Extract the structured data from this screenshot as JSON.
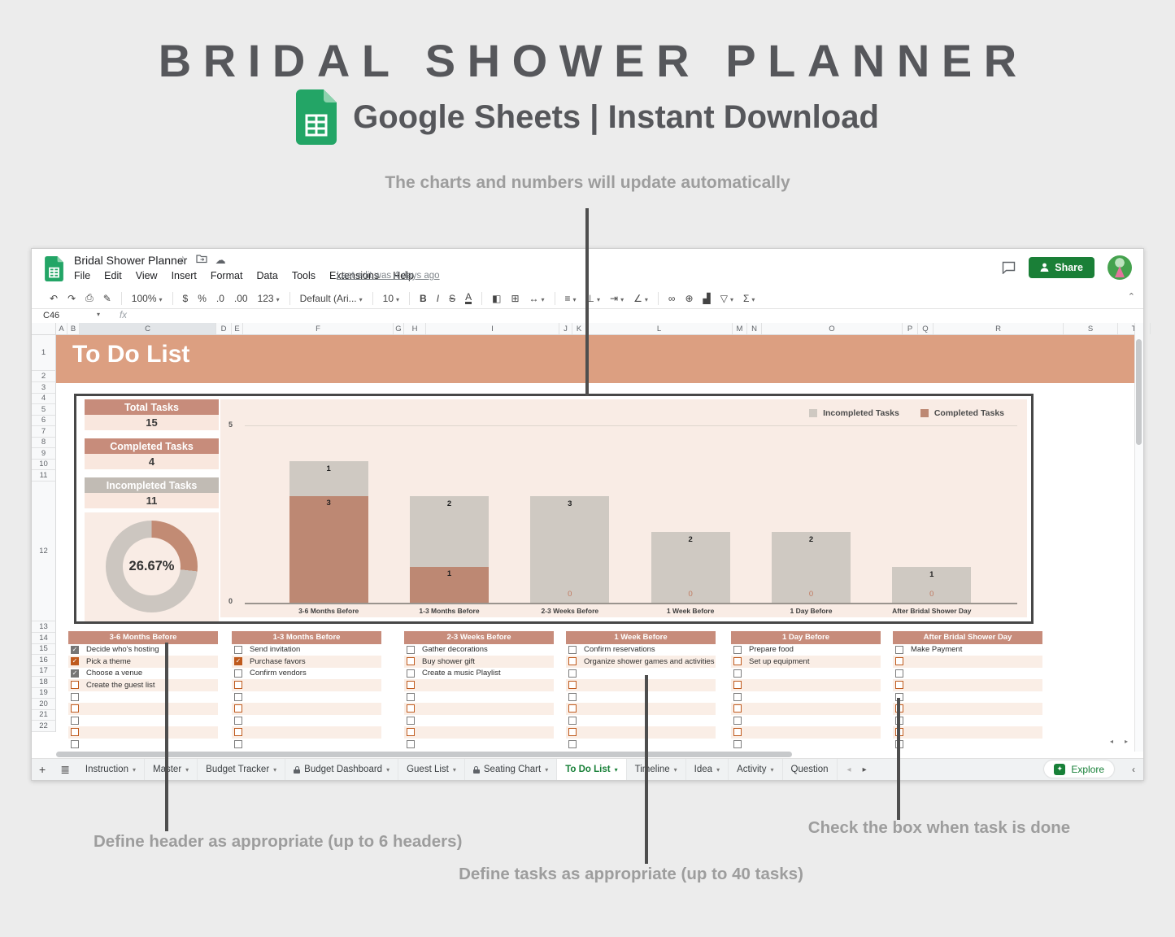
{
  "hero": {
    "title": "BRIDAL SHOWER PLANNER",
    "subtitle": "Google Sheets | Instant Download",
    "note_top": "The charts and numbers will update automatically",
    "note_headers": "Define header as appropriate (up to 6 headers)",
    "note_tasks": "Define tasks as appropriate (up to 40 tasks)",
    "note_checkbox": "Check the box when task is done"
  },
  "sheet": {
    "doc_title": "Bridal Shower Planner",
    "menu": [
      "File",
      "Edit",
      "View",
      "Insert",
      "Format",
      "Data",
      "Tools",
      "Extensions",
      "Help"
    ],
    "last_edit": "Last edit was 4 days ago",
    "share_label": "Share",
    "name_box": "C46",
    "fx_label": "fx",
    "toolbar": {
      "zoom": "100%",
      "currency": "$",
      "percent": "%",
      "dec0": ".0",
      "dec00": ".00",
      "more_formats": "123",
      "font": "Default (Ari...",
      "size": "10"
    },
    "columns": [
      "A",
      "B",
      "C",
      "D",
      "E",
      "F",
      "G",
      "H",
      "I",
      "J",
      "K",
      "L",
      "M",
      "N",
      "O",
      "P",
      "Q",
      "R",
      "S",
      "T"
    ],
    "active_column": "C",
    "rows": [
      "1",
      "2",
      "3",
      "4",
      "5",
      "6",
      "7",
      "8",
      "9",
      "10",
      "11",
      "12",
      "13",
      "14",
      "15",
      "16",
      "17",
      "18",
      "19",
      "20",
      "21",
      "22"
    ],
    "page_title": "To Do List",
    "stats": [
      {
        "label": "Total Tasks",
        "value": "15",
        "style": "salmon"
      },
      {
        "label": "Completed Tasks",
        "value": "4",
        "style": "salmon"
      },
      {
        "label": "Incompleted Tasks",
        "value": "11",
        "style": "gray"
      }
    ],
    "donut": {
      "percent": 26.67,
      "percent_label": "26.67%",
      "done_color": "#c28b74",
      "remain_color": "#ccc6c0"
    },
    "tabs": [
      {
        "label": "Instruction",
        "locked": false,
        "active": false
      },
      {
        "label": "Master",
        "locked": false,
        "active": false
      },
      {
        "label": "Budget Tracker",
        "locked": false,
        "active": false
      },
      {
        "label": "Budget Dashboard",
        "locked": true,
        "active": false
      },
      {
        "label": "Guest List",
        "locked": false,
        "active": false
      },
      {
        "label": "Seating Chart",
        "locked": true,
        "active": false
      },
      {
        "label": "To Do List",
        "locked": false,
        "active": true
      },
      {
        "label": "Timeline",
        "locked": false,
        "active": false
      },
      {
        "label": "Idea",
        "locked": false,
        "active": false
      },
      {
        "label": "Activity",
        "locked": false,
        "active": false
      },
      {
        "label": "Question",
        "locked": false,
        "active": false,
        "truncated": true
      }
    ],
    "explore_label": "Explore"
  },
  "chart_data": {
    "type": "bar",
    "stacked": true,
    "categories": [
      "3-6 Months Before",
      "1-3 Months Before",
      "2-3 Weeks Before",
      "1 Week Before",
      "1 Day Before",
      "After Bridal Shower Day"
    ],
    "series": [
      {
        "name": "Completed Tasks",
        "color": "#bd8873",
        "values": [
          3,
          1,
          0,
          0,
          0,
          0
        ]
      },
      {
        "name": "Incompleted Tasks",
        "color": "#cfc9c2",
        "values": [
          1,
          2,
          3,
          2,
          2,
          1
        ]
      }
    ],
    "legend_order": [
      1,
      0
    ],
    "ylim": [
      0,
      5
    ],
    "yticks": [
      0,
      5
    ],
    "grid": true,
    "legend_position": "top-right",
    "zero_label_color": "#c0795f"
  },
  "todo": {
    "rows_per_group": 9,
    "groups": [
      {
        "header": "3-6 Months Before",
        "tasks": [
          {
            "label": "Decide who's hosting",
            "checked": true
          },
          {
            "label": "Pick a theme",
            "checked": true
          },
          {
            "label": "Choose a venue",
            "checked": true
          },
          {
            "label": "Create the guest list",
            "checked": false
          }
        ]
      },
      {
        "header": "1-3 Months Before",
        "tasks": [
          {
            "label": "Send invitation",
            "checked": false
          },
          {
            "label": "Purchase favors",
            "checked": true
          },
          {
            "label": "Confirm vendors",
            "checked": false
          }
        ]
      },
      {
        "header": "2-3 Weeks Before",
        "tasks": [
          {
            "label": "Gather decorations",
            "checked": false
          },
          {
            "label": "Buy shower gift",
            "checked": false
          },
          {
            "label": "Create a music Playlist",
            "checked": false
          }
        ]
      },
      {
        "header": "1 Week Before",
        "tasks": [
          {
            "label": "Confirm reservations",
            "checked": false
          },
          {
            "label": "Organize shower games and activities",
            "checked": false
          }
        ]
      },
      {
        "header": "1 Day Before",
        "tasks": [
          {
            "label": "Prepare food",
            "checked": false
          },
          {
            "label": "Set up equipment",
            "checked": false
          }
        ]
      },
      {
        "header": "After Bridal Shower Day",
        "tasks": [
          {
            "label": "Make Payment",
            "checked": false
          }
        ]
      }
    ]
  },
  "colors": {
    "banner": "#dc9f81",
    "stat_salmon": "#c78c7b",
    "stat_gray": "#c1bbb4",
    "value_bg": "#f9e7de",
    "chart_bg": "#f9ece5",
    "task_row_pink": "#faeee6",
    "checkbox_orange": "#bf5a1d",
    "share_green": "#1a7f37",
    "active_tab_green": "#188038"
  }
}
